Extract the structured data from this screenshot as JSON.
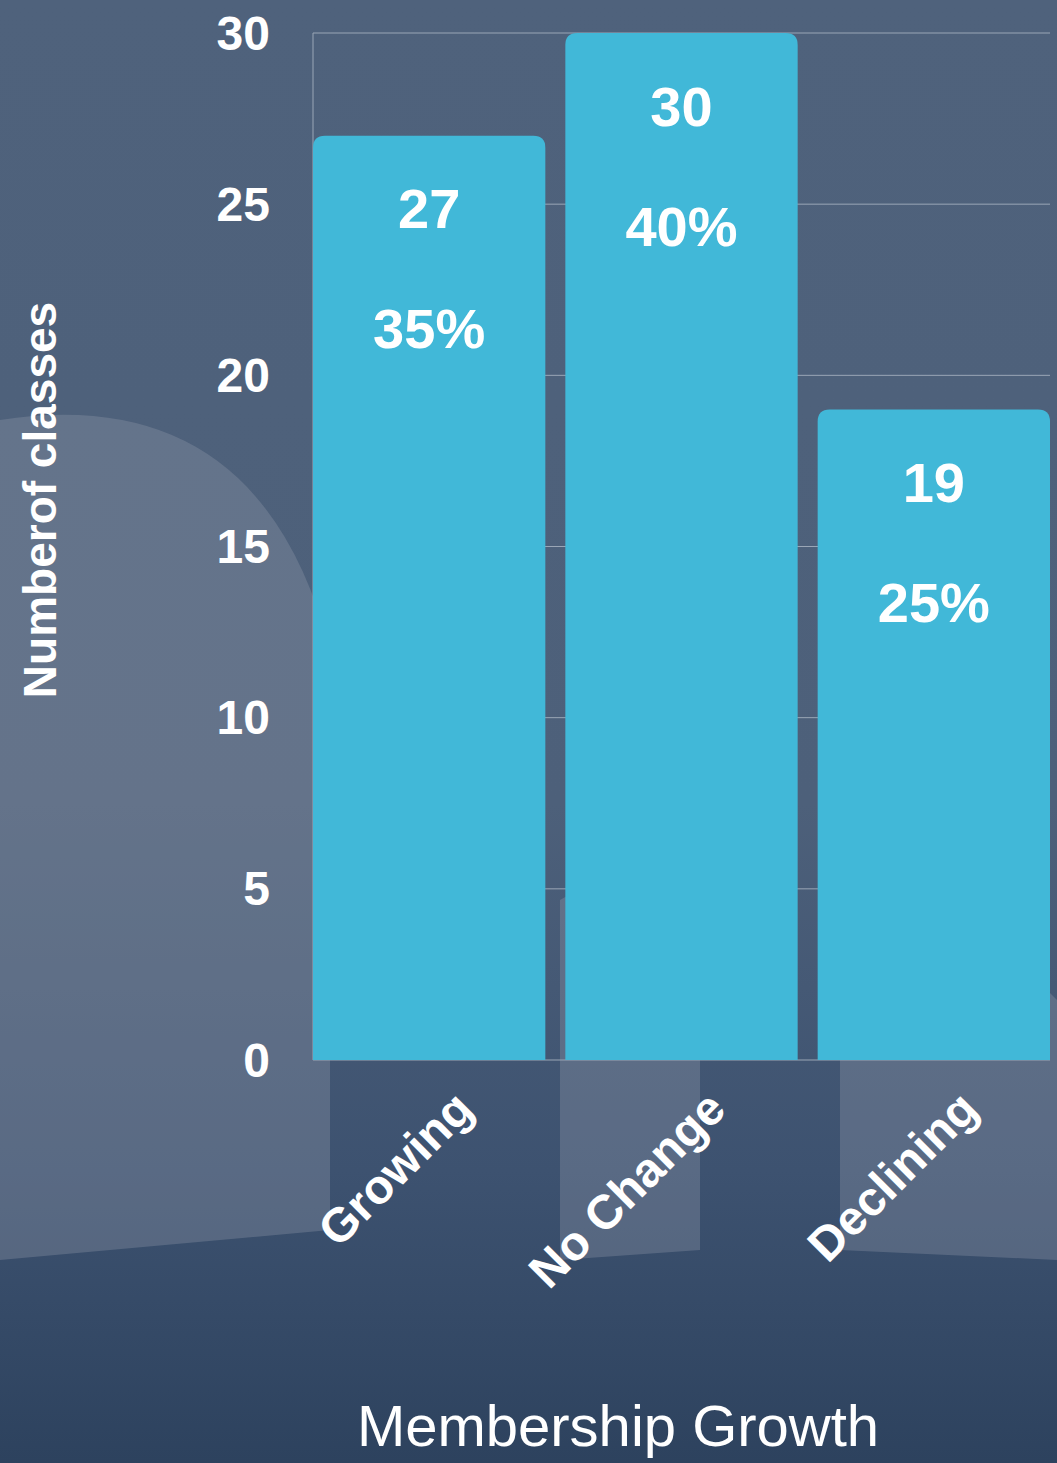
{
  "chart_data": {
    "type": "bar",
    "x_label": "Membership Growth",
    "y_label": "Numberof classes",
    "categories": [
      "Growing",
      "No Change",
      "Declining"
    ],
    "values": [
      27,
      30,
      19
    ],
    "share_labels": [
      "35%",
      "40%",
      "25%"
    ],
    "color": "#41b8d8",
    "ylim": [
      0,
      30
    ],
    "yticks": [
      0,
      5,
      10,
      15,
      20,
      25,
      30
    ],
    "grid": true,
    "data_labels": true
  }
}
